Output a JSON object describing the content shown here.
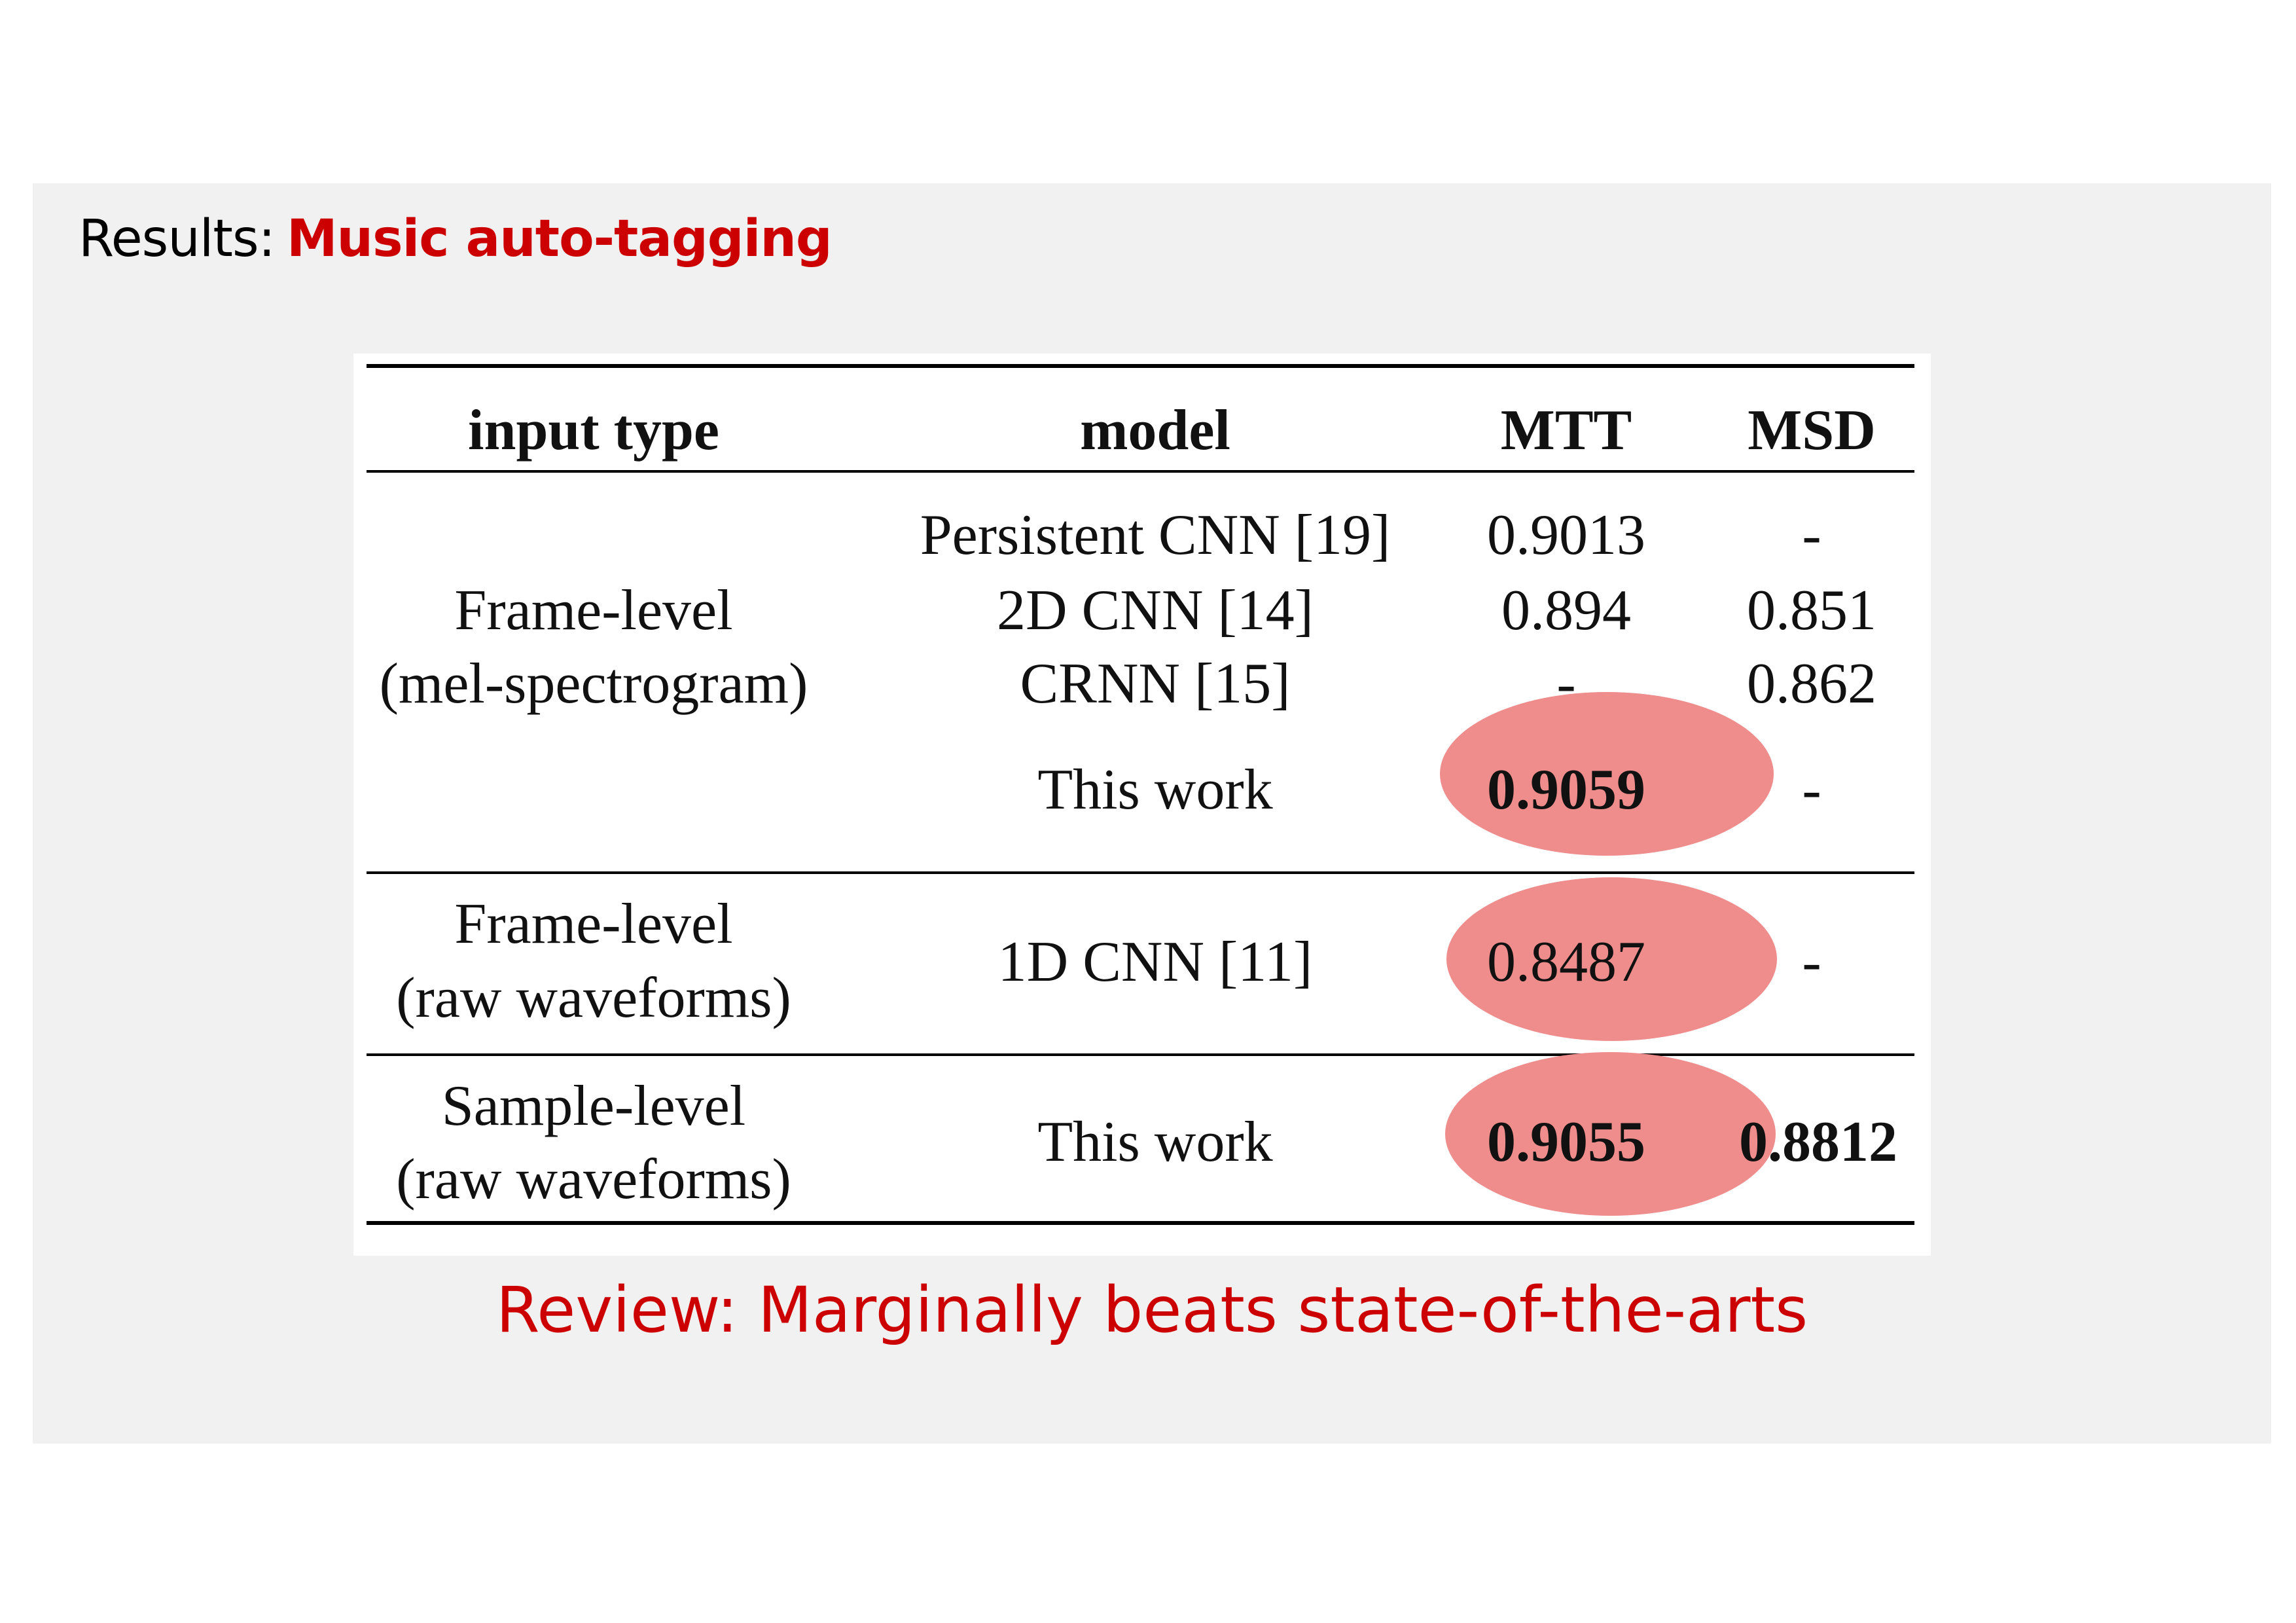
{
  "slide": {
    "title_prefix": "Results:",
    "title_topic": "Music auto-tagging",
    "review": "Review: Marginally beats state-of-the-arts"
  },
  "table": {
    "headers": [
      "input type",
      "model",
      "MTT",
      "MSD"
    ],
    "groups": [
      {
        "input_type": [
          "Frame-level",
          "(mel-spectrogram)"
        ],
        "rows": [
          {
            "model": "Persistent CNN [19]",
            "mtt": "0.9013",
            "msd": "-"
          },
          {
            "model": "2D CNN [14]",
            "mtt": "0.894",
            "msd": "0.851"
          },
          {
            "model": "CRNN [15]",
            "mtt": "-",
            "msd": "0.862"
          },
          {
            "model": "This work",
            "mtt": "0.9059",
            "msd": "-"
          }
        ]
      },
      {
        "input_type": [
          "Frame-level",
          "(raw waveforms)"
        ],
        "rows": [
          {
            "model": "1D CNN [11]",
            "mtt": "0.8487",
            "msd": "-"
          }
        ]
      },
      {
        "input_type": [
          "Sample-level",
          "(raw waveforms)"
        ],
        "rows": [
          {
            "model": "This work",
            "mtt": "0.9055",
            "msd": "0.8812"
          }
        ]
      }
    ]
  },
  "colors": {
    "accent": "#cc0000",
    "highlight": "#ef8c8c",
    "background": "#f1f1f1"
  }
}
